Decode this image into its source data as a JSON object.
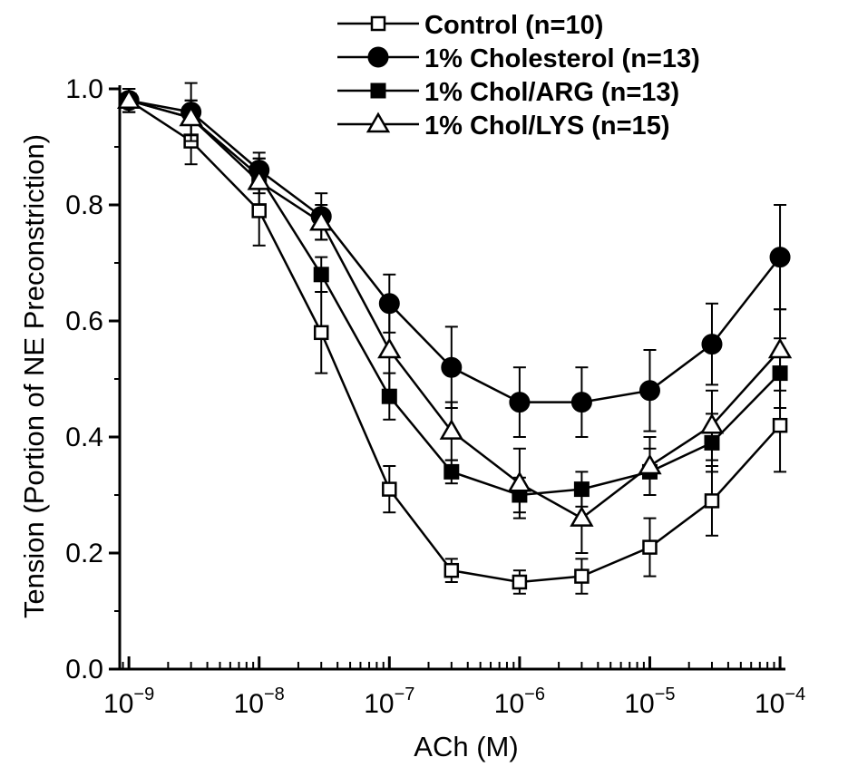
{
  "chart_data": {
    "type": "line",
    "title": "",
    "xlabel": "ACh (M)",
    "ylabel": "Tension (Portion of NE Preconstriction)",
    "x_scale": "log",
    "xlim": [
      8.5e-10,
      0.00011
    ],
    "ylim": [
      0.0,
      1.0
    ],
    "x_ticks": [
      {
        "value": 1e-09,
        "base": "10",
        "exp": "−9"
      },
      {
        "value": 1e-08,
        "base": "10",
        "exp": "−8"
      },
      {
        "value": 1e-07,
        "base": "10",
        "exp": "−7"
      },
      {
        "value": 1e-06,
        "base": "10",
        "exp": "−6"
      },
      {
        "value": 1e-05,
        "base": "10",
        "exp": "−5"
      },
      {
        "value": 0.0001,
        "base": "10",
        "exp": "−4"
      }
    ],
    "y_ticks": [
      {
        "value": 0.0,
        "label": "0.0"
      },
      {
        "value": 0.2,
        "label": "0.2"
      },
      {
        "value": 0.4,
        "label": "0.4"
      },
      {
        "value": 0.6,
        "label": "0.6"
      },
      {
        "value": 0.8,
        "label": "0.8"
      },
      {
        "value": 1.0,
        "label": "1.0"
      }
    ],
    "legend_position": "top-right",
    "grid": false,
    "x": [
      1e-09,
      3e-09,
      1e-08,
      3e-08,
      1e-07,
      3e-07,
      1e-06,
      3e-06,
      1e-05,
      3e-05,
      0.0001
    ],
    "series": [
      {
        "name": "Control (n=10)",
        "marker": "square-open",
        "values": [
          0.98,
          0.91,
          0.79,
          0.58,
          0.31,
          0.17,
          0.15,
          0.16,
          0.21,
          0.29,
          0.42
        ],
        "errors": [
          0.02,
          0.04,
          0.06,
          0.07,
          0.04,
          0.02,
          0.02,
          0.03,
          0.05,
          0.06,
          0.08
        ]
      },
      {
        "name": "1% Cholesterol (n=13)",
        "marker": "circle-filled",
        "values": [
          0.98,
          0.96,
          0.86,
          0.78,
          0.63,
          0.52,
          0.46,
          0.46,
          0.48,
          0.56,
          0.71
        ],
        "errors": [
          0.02,
          0.05,
          0.03,
          0.04,
          0.05,
          0.07,
          0.06,
          0.06,
          0.07,
          0.07,
          0.09
        ]
      },
      {
        "name": "1% Chol/ARG (n=13)",
        "marker": "square-filled",
        "values": [
          0.98,
          0.95,
          0.85,
          0.68,
          0.47,
          0.34,
          0.3,
          0.31,
          0.34,
          0.39,
          0.51
        ],
        "errors": [
          0.02,
          0.03,
          0.03,
          0.03,
          0.04,
          0.02,
          0.03,
          0.03,
          0.04,
          0.05,
          0.06
        ]
      },
      {
        "name": "1% Chol/LYS (n=15)",
        "marker": "triangle-open",
        "values": [
          0.98,
          0.95,
          0.84,
          0.77,
          0.55,
          0.41,
          0.32,
          0.26,
          0.35,
          0.42,
          0.55
        ],
        "errors": [
          0.02,
          0.03,
          0.04,
          0.03,
          0.07,
          0.05,
          0.06,
          0.06,
          0.05,
          0.06,
          0.07
        ]
      }
    ]
  }
}
